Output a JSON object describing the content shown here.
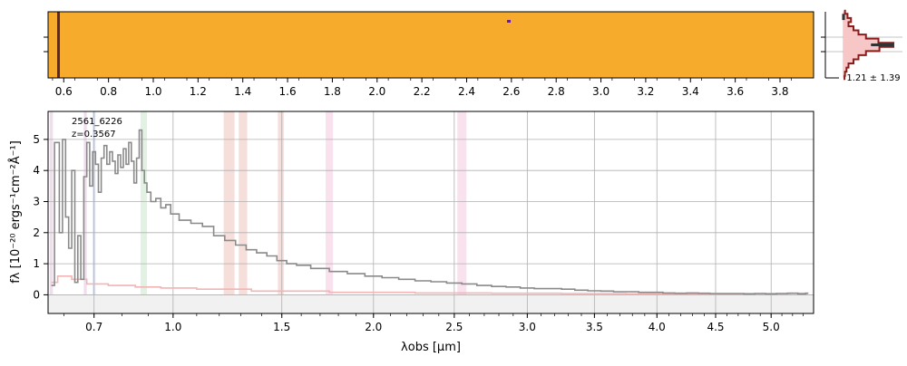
{
  "colors": {
    "spectrum": "#8a8a8a",
    "error": "#f2b4b4",
    "grid": "#b0b0b0",
    "twod_background": "#f7ab2c",
    "twod_trace": "#6a1f8f",
    "profile_fill": "#f7c6c6",
    "profile_line": "#8b1c1c",
    "profile_model": "#333333",
    "line_band_colors": [
      "#ead0e6",
      "#d4dcee",
      "#d6ecd6",
      "#f2d0cc",
      "#f7d6e6"
    ]
  },
  "chart_data": [
    {
      "type": "heatmap",
      "name": "2d-spectrum",
      "x_tick_labels": [
        "0.6",
        "0.8",
        "1.0",
        "1.2",
        "1.4",
        "1.6",
        "1.8",
        "2.0",
        "2.2",
        "2.4",
        "2.6",
        "2.8",
        "3.0",
        "3.2",
        "3.4",
        "3.6",
        "3.8"
      ],
      "x_tick_values": [
        0.6,
        0.8,
        1.0,
        1.2,
        1.4,
        1.6,
        1.8,
        2.0,
        2.2,
        2.4,
        2.6,
        2.8,
        3.0,
        3.2,
        3.4,
        3.6,
        3.8
      ],
      "x_range": [
        0.53,
        3.95
      ],
      "rows": 17,
      "trace_row": 8
    },
    {
      "type": "line",
      "name": "cross-dispersion-profile",
      "annotation": "1.21 ± 1.39",
      "y_range": [
        -8,
        8
      ],
      "x": [
        -8,
        -7,
        -6,
        -5,
        -4,
        -3,
        -2,
        -1,
        0,
        1,
        2,
        3,
        4,
        5,
        6,
        7,
        8
      ],
      "values": [
        0.03,
        0.08,
        0.15,
        0.1,
        0.2,
        0.3,
        0.45,
        0.7,
        1.0,
        0.72,
        0.45,
        0.3,
        0.2,
        0.1,
        0.06,
        0.03,
        0.02
      ]
    },
    {
      "type": "line",
      "name": "1d-spectrum",
      "object_id": "2561_6226",
      "redshift_label": "z=0.3567",
      "xlabel": "λobs [μm]",
      "ylabel": "fλ [10⁻²⁰ ergs⁻¹cm⁻²Å⁻¹]",
      "x_scale": "sqrt",
      "xlim": [
        0.55,
        5.4
      ],
      "ylim": [
        -0.6,
        5.9
      ],
      "grid": true,
      "x_tick_values": [
        0.7,
        1.0,
        1.5,
        2.0,
        2.5,
        3.0,
        3.5,
        4.0,
        4.5,
        5.0
      ],
      "x_tick_labels": [
        "0.7",
        "1.0",
        "1.5",
        "2.0",
        "2.5",
        "3.0",
        "3.5",
        "4.0",
        "4.5",
        "5.0"
      ],
      "y_tick_values": [
        0,
        1,
        2,
        3,
        4,
        5
      ],
      "y_tick_labels": [
        "0",
        "1",
        "2",
        "3",
        "4",
        "5"
      ],
      "line_bands": [
        {
          "x0": 0.555,
          "x1": 0.565,
          "color_index": 0
        },
        {
          "x0": 0.665,
          "x1": 0.675,
          "color_index": 0
        },
        {
          "x0": 0.695,
          "x1": 0.705,
          "color_index": 1
        },
        {
          "x0": 0.87,
          "x1": 0.895,
          "color_index": 2
        },
        {
          "x0": 1.22,
          "x1": 1.27,
          "color_index": 3
        },
        {
          "x0": 1.29,
          "x1": 1.33,
          "color_index": 3
        },
        {
          "x0": 1.48,
          "x1": 1.51,
          "color_index": 3
        },
        {
          "x0": 1.73,
          "x1": 1.77,
          "color_index": 4
        },
        {
          "x0": 2.52,
          "x1": 2.58,
          "color_index": 4
        }
      ],
      "series": [
        {
          "x": [
            0.56,
            0.58,
            0.59,
            0.6,
            0.61,
            0.62,
            0.63,
            0.64,
            0.65,
            0.66,
            0.67,
            0.68,
            0.69,
            0.7,
            0.71,
            0.72,
            0.73,
            0.74,
            0.75,
            0.76,
            0.77,
            0.78,
            0.79,
            0.8,
            0.81,
            0.82,
            0.83,
            0.84,
            0.85,
            0.86,
            0.87,
            0.88,
            0.89,
            0.9,
            0.92,
            0.94,
            0.96,
            0.98,
            1.0,
            1.05,
            1.1,
            1.15,
            1.2,
            1.25,
            1.3,
            1.35,
            1.4,
            1.45,
            1.5,
            1.55,
            1.6,
            1.7,
            1.8,
            1.9,
            2.0,
            2.1,
            2.2,
            2.3,
            2.4,
            2.5,
            2.6,
            2.7,
            2.8,
            2.9,
            3.0,
            3.1,
            3.2,
            3.3,
            3.4,
            3.5,
            3.6,
            3.7,
            3.8,
            3.9,
            4.0,
            4.1,
            4.2,
            4.3,
            4.4,
            4.5,
            4.6,
            4.7,
            4.8,
            4.9,
            5.0,
            5.1,
            5.2,
            5.3,
            5.35
          ],
          "values": [
            0.3,
            4.9,
            2.0,
            5.0,
            2.5,
            1.5,
            4.0,
            0.4,
            1.9,
            0.5,
            3.8,
            4.9,
            3.5,
            4.6,
            4.2,
            3.3,
            4.4,
            4.8,
            4.2,
            4.6,
            4.3,
            3.9,
            4.5,
            4.1,
            4.7,
            4.2,
            4.9,
            4.3,
            3.6,
            4.4,
            5.3,
            4.0,
            3.6,
            3.3,
            3.0,
            3.1,
            2.8,
            2.9,
            2.6,
            2.4,
            2.3,
            2.2,
            1.9,
            1.75,
            1.6,
            1.45,
            1.35,
            1.25,
            1.1,
            1.0,
            0.95,
            0.85,
            0.75,
            0.68,
            0.6,
            0.55,
            0.5,
            0.45,
            0.42,
            0.38,
            0.35,
            0.3,
            0.27,
            0.25,
            0.22,
            0.2,
            0.2,
            0.18,
            0.15,
            0.13,
            0.12,
            0.1,
            0.1,
            0.08,
            0.08,
            0.06,
            0.05,
            0.06,
            0.05,
            0.04,
            0.04,
            0.04,
            0.03,
            0.04,
            0.03,
            0.04,
            0.05,
            0.03,
            0.05
          ]
        },
        {
          "x": [
            0.56,
            0.6,
            0.65,
            0.7,
            0.8,
            0.9,
            1.0,
            1.2,
            1.5,
            2.0,
            2.5,
            3.0,
            3.5,
            4.0,
            4.5,
            5.0,
            5.35
          ],
          "values": [
            0.4,
            0.6,
            0.5,
            0.35,
            0.3,
            0.25,
            0.22,
            0.18,
            0.12,
            0.08,
            0.06,
            0.05,
            0.04,
            0.03,
            0.03,
            0.04,
            0.05
          ]
        }
      ]
    }
  ]
}
